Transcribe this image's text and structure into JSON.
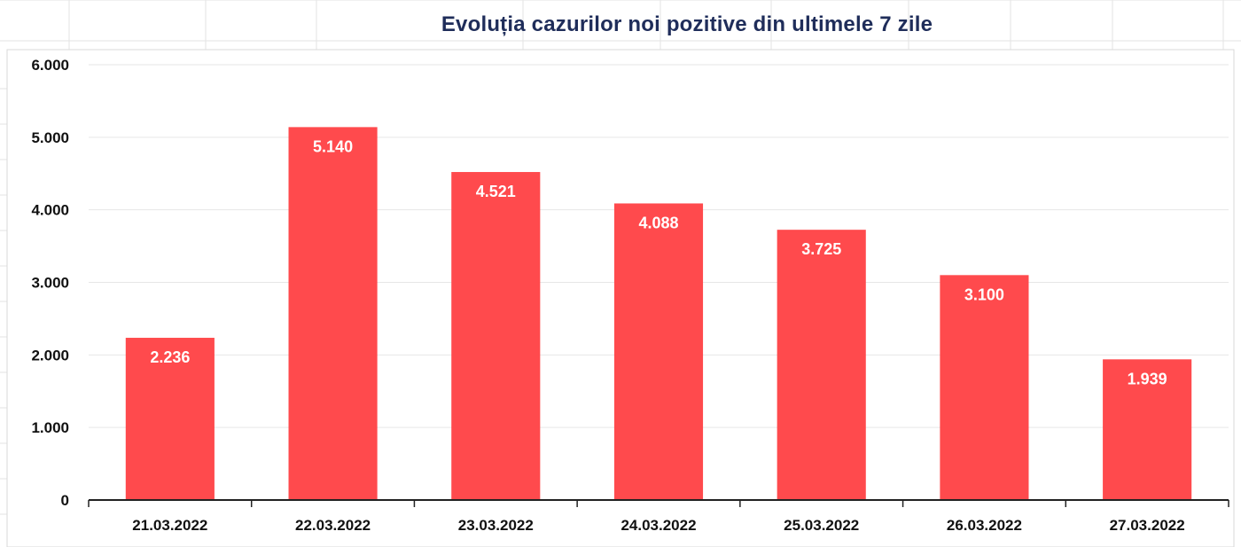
{
  "chart_data": {
    "type": "bar",
    "title": "Evoluția cazurilor noi pozitive din ultimele 7 zile",
    "categories": [
      "21.03.2022",
      "22.03.2022",
      "23.03.2022",
      "24.03.2022",
      "25.03.2022",
      "26.03.2022",
      "27.03.2022"
    ],
    "values": [
      2236,
      5140,
      4521,
      4088,
      3725,
      3100,
      1939
    ],
    "value_labels": [
      "2.236",
      "5.140",
      "4.521",
      "4.088",
      "3.725",
      "3.100",
      "1.939"
    ],
    "y_ticks": [
      0,
      1000,
      2000,
      3000,
      4000,
      5000,
      6000
    ],
    "y_tick_labels": [
      "0",
      "1.000",
      "2.000",
      "3.000",
      "4.000",
      "5.000",
      "6.000"
    ],
    "ylim": [
      0,
      6000
    ],
    "xlabel": "",
    "ylabel": "",
    "grid": true,
    "legend": "none",
    "bar_color": "#ff4a4d",
    "grid_color": "#e6e6e6",
    "axis_color": "#222222"
  }
}
